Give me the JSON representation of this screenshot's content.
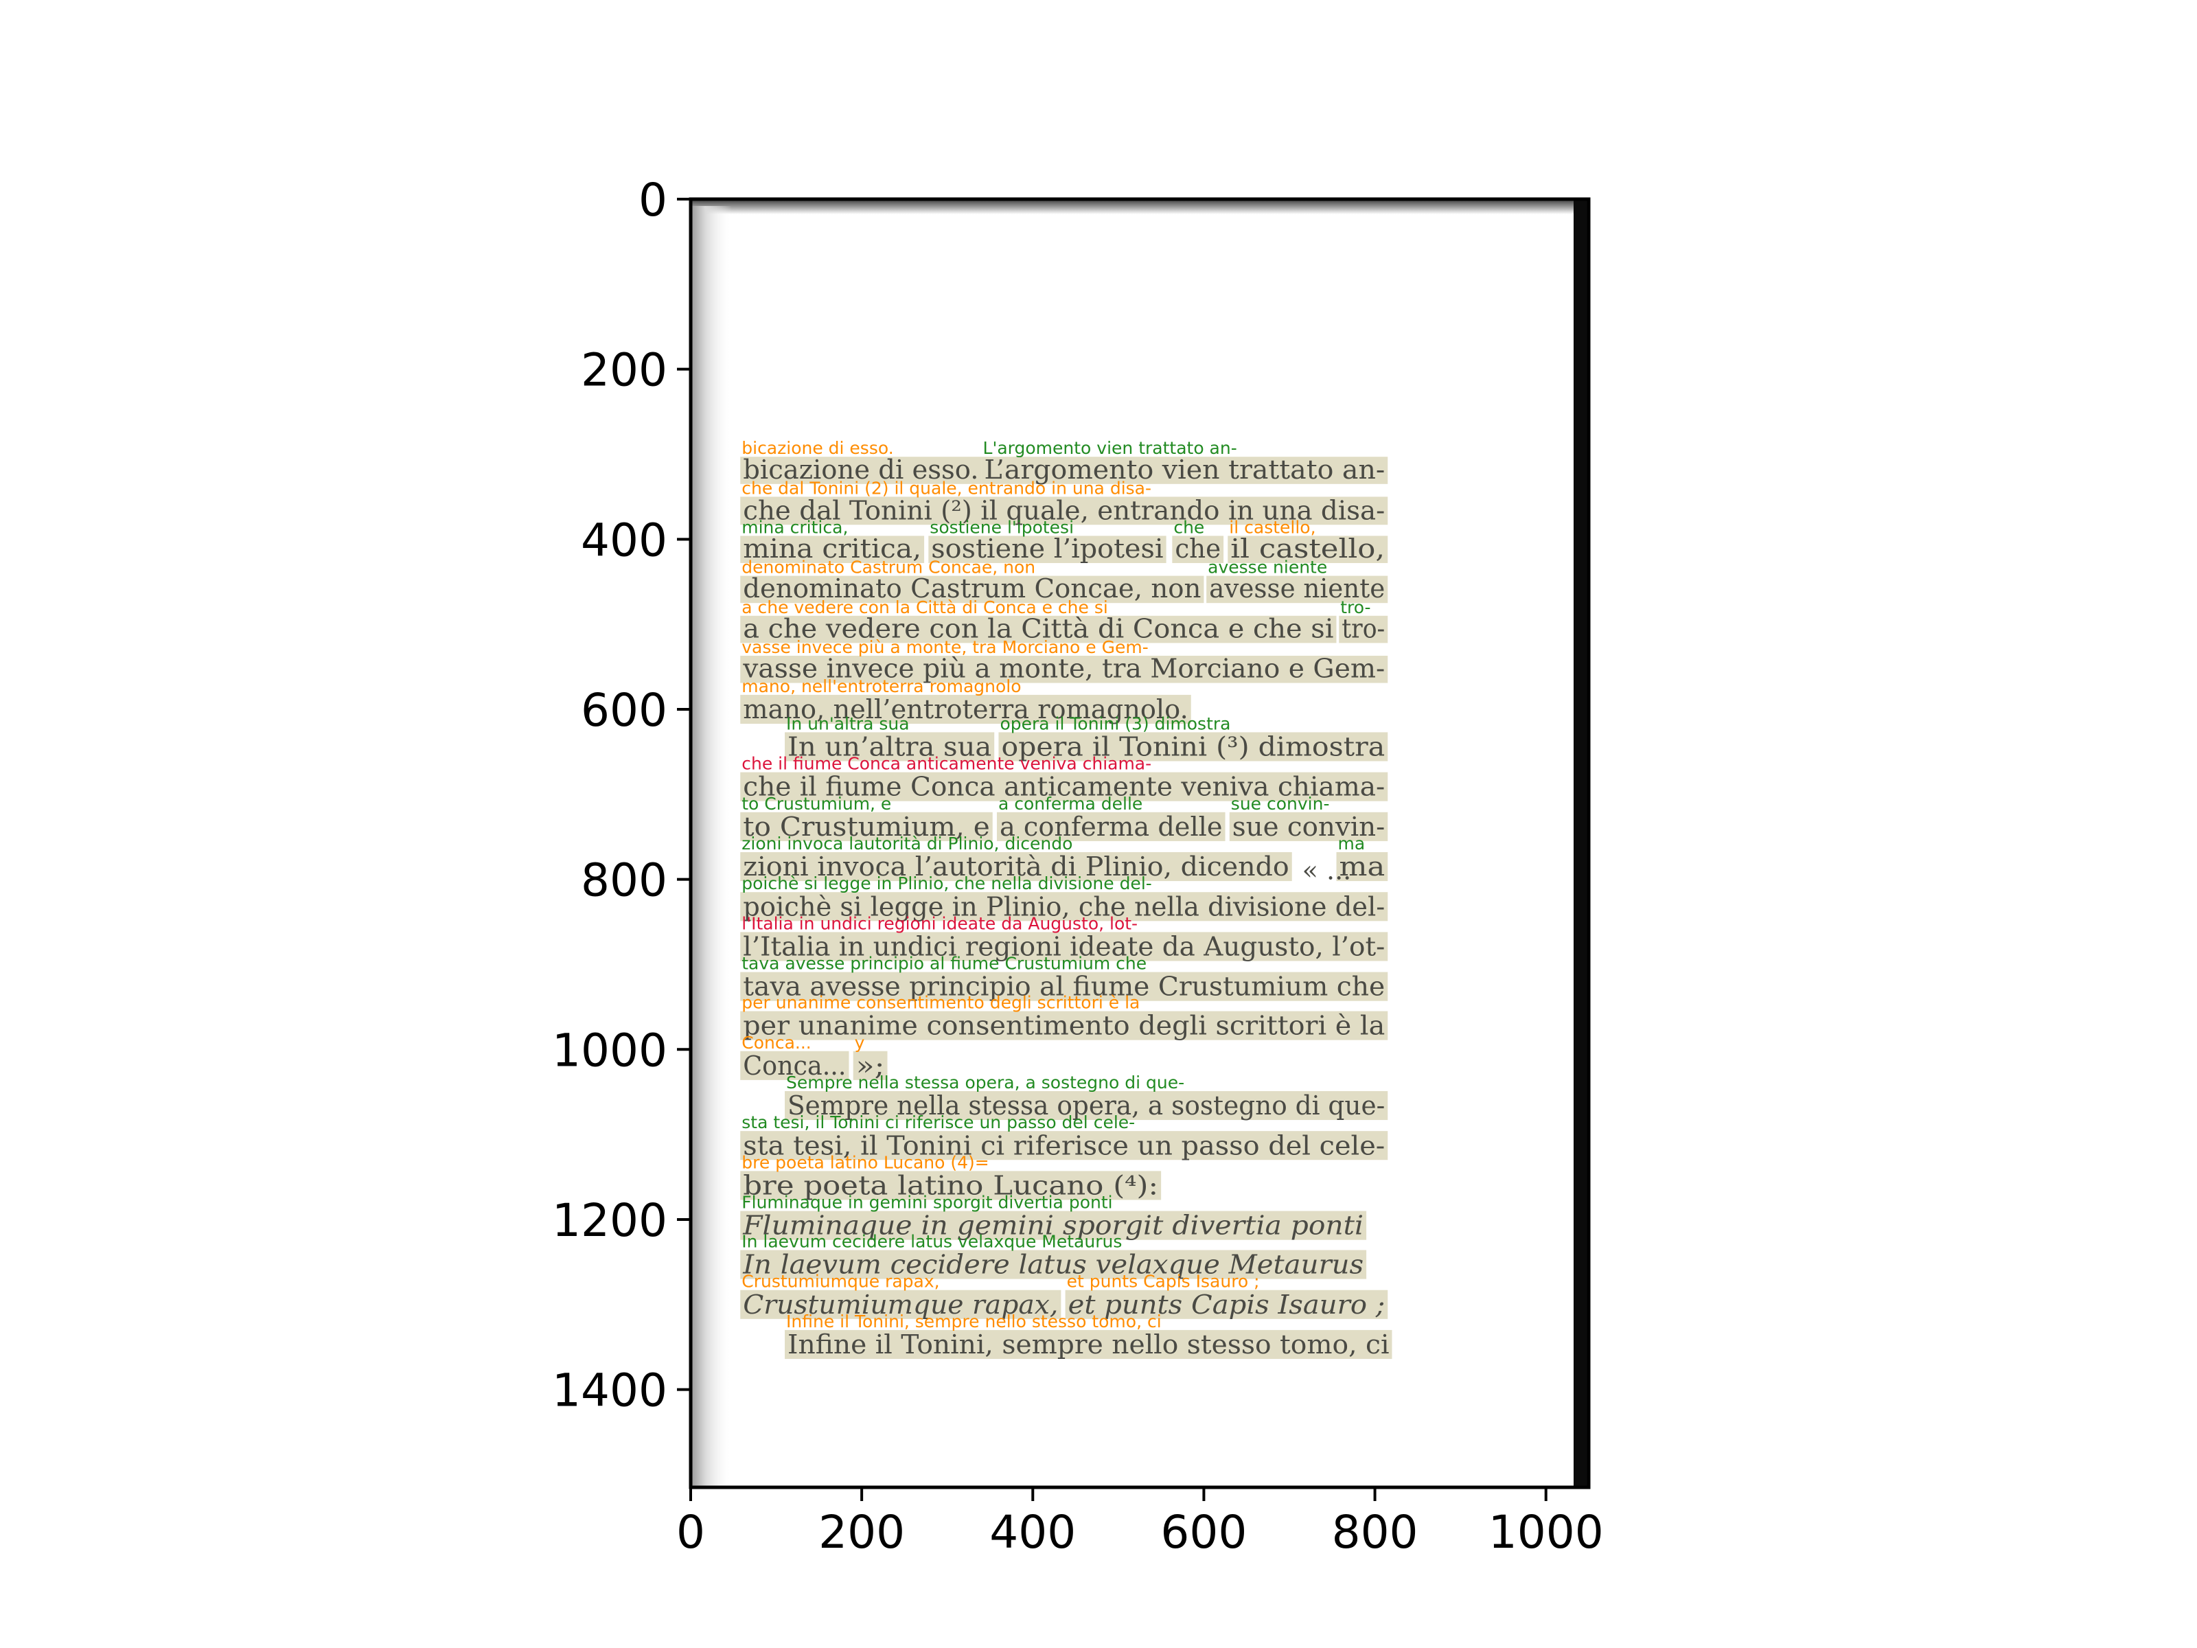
{
  "chart_data": {
    "type": "image",
    "xlim": [
      0,
      1050
    ],
    "ylim": [
      1515,
      0
    ],
    "x_ticks": [
      0,
      200,
      400,
      600,
      800,
      1000
    ],
    "y_ticks": [
      0,
      200,
      400,
      600,
      800,
      1000,
      1200,
      1400
    ],
    "colors": {
      "green": "#228B22",
      "orange": "#FF8C00",
      "red": "#DC143C",
      "box_fill": "#C8C196"
    },
    "boxes": [
      {
        "x0": 58,
        "y0": 303,
        "x1": 340,
        "y1": 335,
        "color": "orange",
        "label": "bicazione di esso.",
        "scan": "bicazione di esso."
      },
      {
        "x0": 340,
        "y0": 303,
        "x1": 815,
        "y1": 335,
        "color": "green",
        "label": "L'argomento vien trattato an-",
        "scan": "L’argomento vien trattato an-"
      },
      {
        "x0": 58,
        "y0": 350,
        "x1": 815,
        "y1": 383,
        "color": "orange",
        "label": "che dal Tonini (2) il quale, entrando in una disa-",
        "scan": "che dal Tonini (²) il quale, entrando in una disa-"
      },
      {
        "x0": 58,
        "y0": 396,
        "x1": 273,
        "y1": 428,
        "color": "green",
        "label": "mina critica,",
        "scan": "mina critica,"
      },
      {
        "x0": 278,
        "y0": 396,
        "x1": 556,
        "y1": 428,
        "color": "green",
        "label": "sostiene l'ipotesi",
        "scan": "sostiene l’ipotesi"
      },
      {
        "x0": 563,
        "y0": 396,
        "x1": 623,
        "y1": 428,
        "color": "green",
        "label": "che",
        "scan": "che"
      },
      {
        "x0": 628,
        "y0": 396,
        "x1": 815,
        "y1": 428,
        "color": "orange",
        "label": "il castello,",
        "scan": "il castello,"
      },
      {
        "x0": 58,
        "y0": 443,
        "x1": 600,
        "y1": 475,
        "color": "orange",
        "label": "denominato Castrum Concae, non",
        "scan": "denominato Castrum Concae, non"
      },
      {
        "x0": 603,
        "y0": 443,
        "x1": 815,
        "y1": 475,
        "color": "green",
        "label": "avesse niente",
        "scan": "avesse niente"
      },
      {
        "x0": 58,
        "y0": 490,
        "x1": 755,
        "y1": 522,
        "color": "orange",
        "label": "a che vedere con la Città di Conca e che si",
        "scan": "a che vedere con la Città di Conca e che si"
      },
      {
        "x0": 758,
        "y0": 490,
        "x1": 815,
        "y1": 522,
        "color": "green",
        "label": "tro-",
        "scan": "tro-"
      },
      {
        "x0": 58,
        "y0": 537,
        "x1": 815,
        "y1": 569,
        "color": "orange",
        "label": "vasse invece più a monte, tra Morciano e Gem-",
        "scan": "vasse invece più a monte, tra Morciano e Gem-"
      },
      {
        "x0": 58,
        "y0": 583,
        "x1": 585,
        "y1": 617,
        "color": "orange",
        "label": "mano, nell'entroterra romagnolo",
        "scan": "mano, nell’entroterra romagnolo."
      },
      {
        "x0": 110,
        "y0": 627,
        "x1": 355,
        "y1": 661,
        "color": "green",
        "label": "In un'altra sua",
        "scan": "In un’altra sua"
      },
      {
        "x0": 360,
        "y0": 627,
        "x1": 815,
        "y1": 661,
        "color": "green",
        "label": "opera il Tonini (3) dimostra",
        "scan": "opera il Tonini (³) dimostra"
      },
      {
        "x0": 58,
        "y0": 674,
        "x1": 815,
        "y1": 708,
        "color": "red",
        "label": "che il fiume Conca anticamente veniva chiama-",
        "scan": "che il fiume Conca anticamente veniva chiama-"
      },
      {
        "x0": 58,
        "y0": 721,
        "x1": 353,
        "y1": 755,
        "color": "green",
        "label": "to Crustumium, e",
        "scan": "to Crustumium, e"
      },
      {
        "x0": 358,
        "y0": 721,
        "x1": 625,
        "y1": 755,
        "color": "green",
        "label": "a conferma delle",
        "scan": "a conferma delle"
      },
      {
        "x0": 630,
        "y0": 721,
        "x1": 815,
        "y1": 755,
        "color": "green",
        "label": "sue convin-",
        "scan": "sue convin-"
      },
      {
        "x0": 58,
        "y0": 768,
        "x1": 703,
        "y1": 802,
        "color": "green",
        "label": "zioni invoca lautorità di Plinio, dicendo",
        "scan": "zioni invoca l’autorità di Plinio, dicendo"
      },
      {
        "x0": 755,
        "y0": 768,
        "x1": 815,
        "y1": 802,
        "color": "green",
        "label": "ma",
        "scan": "ma"
      },
      {
        "x0": 58,
        "y0": 815,
        "x1": 815,
        "y1": 849,
        "color": "green",
        "label": "poichè si legge in Plinio, che nella divisione del-",
        "scan": "poichè si legge in Plinio, che nella divisione del-"
      },
      {
        "x0": 58,
        "y0": 862,
        "x1": 815,
        "y1": 896,
        "color": "red",
        "label": "l'Italia in undici regioni ideate da Augusto, lot-",
        "scan": "l’Italia in undici regioni ideate da Augusto, l’ot-"
      },
      {
        "x0": 58,
        "y0": 909,
        "x1": 815,
        "y1": 943,
        "color": "green",
        "label": "tava avesse principio al fiume Crustumium che",
        "scan": "tava avesse principio al fiume Crustumium che"
      },
      {
        "x0": 58,
        "y0": 955,
        "x1": 815,
        "y1": 989,
        "color": "orange",
        "label": "per unanime consentimento degli scrittori è la",
        "scan": "per unanime consentimento degli scrittori è la"
      },
      {
        "x0": 58,
        "y0": 1002,
        "x1": 185,
        "y1": 1036,
        "color": "orange",
        "label": "Conca...",
        "scan": "Conca..."
      },
      {
        "x0": 190,
        "y0": 1002,
        "x1": 230,
        "y1": 1036,
        "color": "orange",
        "label": "y",
        "scan": "»;"
      },
      {
        "x0": 110,
        "y0": 1049,
        "x1": 815,
        "y1": 1083,
        "color": "green",
        "label": "Sempre nella stessa opera, a sostegno di que-",
        "scan": "Sempre nella stessa opera, a sostegno di que-"
      },
      {
        "x0": 58,
        "y0": 1096,
        "x1": 815,
        "y1": 1130,
        "color": "green",
        "label": "sta tesi, il Tonini ci riferisce un passo del cele-",
        "scan": "sta tesi, il Tonini ci riferisce un passo del cele-"
      },
      {
        "x0": 58,
        "y0": 1143,
        "x1": 550,
        "y1": 1177,
        "color": "orange",
        "label": "bre poeta latino Lucano (4)=",
        "scan": "bre poeta latino Lucano (⁴):"
      },
      {
        "x0": 58,
        "y0": 1190,
        "x1": 790,
        "y1": 1224,
        "color": "green",
        "label": "Fluminaque in gemini sporgit divertia ponti",
        "scan": "Fluminaque in gemini sporgit divertia ponti",
        "italic": true
      },
      {
        "x0": 58,
        "y0": 1236,
        "x1": 790,
        "y1": 1270,
        "color": "green",
        "label": "In laevum cecidere latus velaxque Metaurus",
        "scan": "In laevum cecidere latus velaxque Metaurus",
        "italic": true
      },
      {
        "x0": 58,
        "y0": 1283,
        "x1": 433,
        "y1": 1317,
        "color": "orange",
        "label": "Crustumiumque rapax,",
        "scan": "Crustumiumque rapax,",
        "italic": true
      },
      {
        "x0": 438,
        "y0": 1283,
        "x1": 815,
        "y1": 1317,
        "color": "orange",
        "label": "et punts Capis Isauro ;",
        "scan": "et punts Capis Isauro ;",
        "italic": true
      },
      {
        "x0": 110,
        "y0": 1330,
        "x1": 820,
        "y1": 1364,
        "color": "orange",
        "label": "Infine il Tonini, sempre nello stesso tomo, ci",
        "scan": "Infine il Tonini, sempre nello stesso tomo, ci"
      }
    ],
    "extra_scan_text": [
      {
        "x": 715,
        "y": 800,
        "text": "« ..."
      }
    ]
  }
}
